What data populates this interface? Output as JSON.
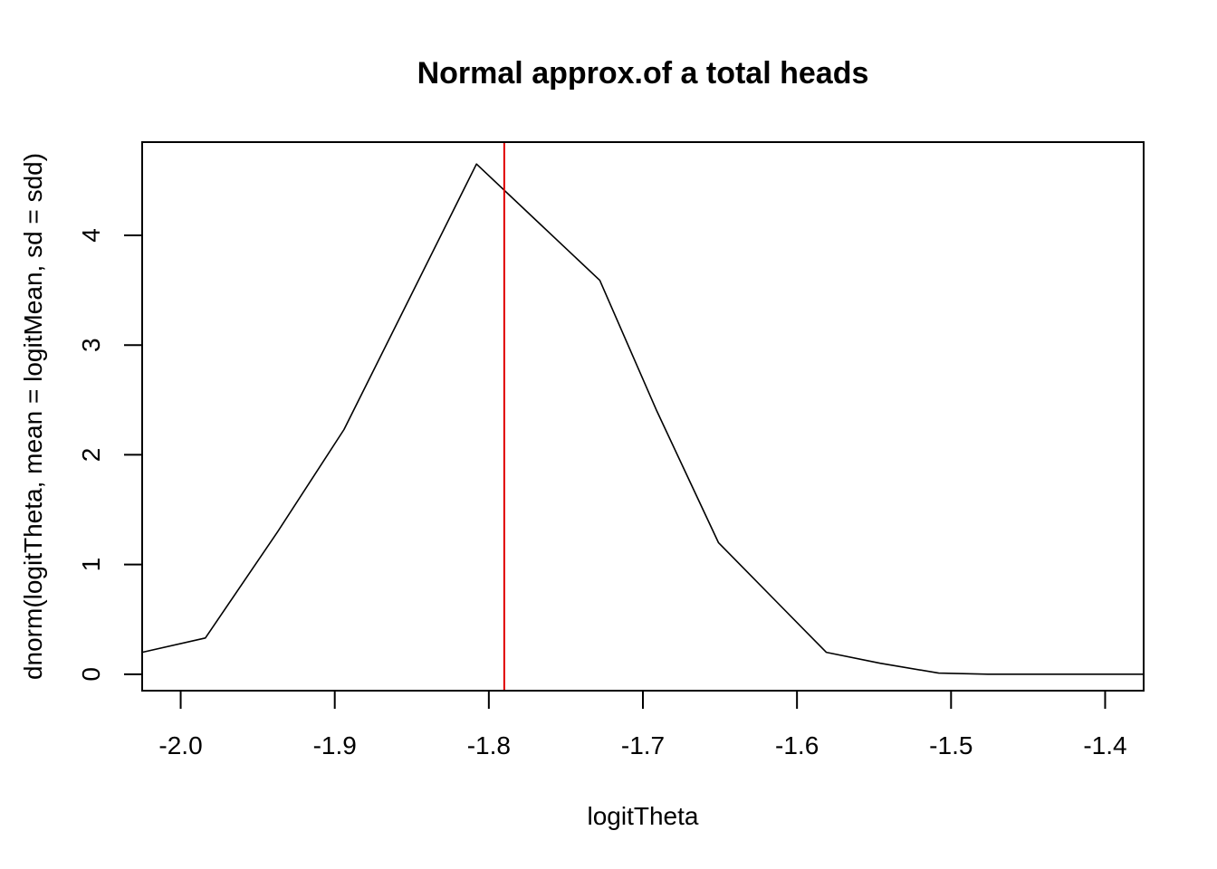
{
  "chart_data": {
    "type": "line",
    "title": "Normal approx.of a total heads",
    "xlabel": "logitTheta",
    "ylabel": "dnorm(logitTheta, mean = logitMean, sd = sdd)",
    "xlim": [
      -2.025,
      -1.375
    ],
    "ylim": [
      -0.15,
      4.85
    ],
    "x_ticks": [
      -2.0,
      -1.9,
      -1.8,
      -1.7,
      -1.6,
      -1.5,
      -1.4
    ],
    "x_tick_labels": [
      "-2.0",
      "-1.9",
      "-1.8",
      "-1.7",
      "-1.6",
      "-1.5",
      "-1.4"
    ],
    "y_ticks": [
      0,
      1,
      2,
      3,
      4
    ],
    "y_tick_labels": [
      "0",
      "1",
      "2",
      "3",
      "4"
    ],
    "grid": false,
    "series": [
      {
        "color": "#000000",
        "x": [
          -2.025,
          -1.984,
          -1.937,
          -1.894,
          -1.851,
          -1.808,
          -1.768,
          -1.728,
          -1.691,
          -1.651,
          -1.616,
          -1.581,
          -1.546,
          -1.508,
          -1.476,
          -1.375
        ],
        "y": [
          0.2,
          0.33,
          1.3,
          2.23,
          3.44,
          4.65,
          4.12,
          3.59,
          2.4,
          1.2,
          0.7,
          0.2,
          0.1,
          0.01,
          0.0,
          0.0
        ]
      }
    ],
    "vlines": [
      {
        "x": -1.79,
        "color": "#e00000"
      }
    ]
  }
}
